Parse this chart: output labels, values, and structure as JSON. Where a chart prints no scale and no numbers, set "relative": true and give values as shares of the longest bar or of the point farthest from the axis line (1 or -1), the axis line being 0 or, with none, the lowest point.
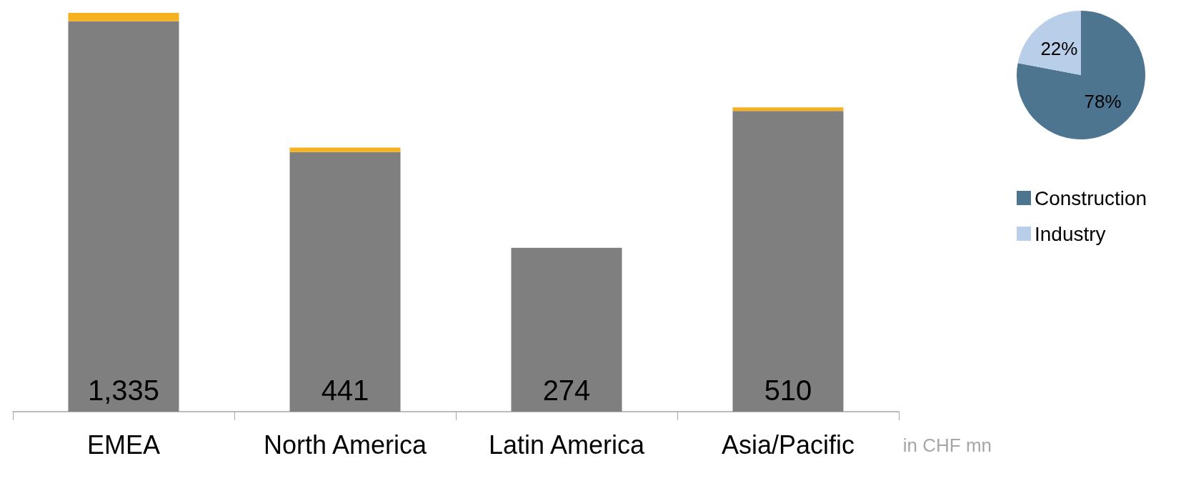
{
  "chart_data": [
    {
      "type": "bar",
      "stacked": true,
      "categories": [
        "EMEA",
        "North America",
        "Latin America",
        "Asia/Pacific"
      ],
      "relative": true,
      "series": [
        {
          "color": "#7f7f7f",
          "values": [
            0.979,
            0.651,
            0.411,
            0.754
          ]
        },
        {
          "color": "#f5b120",
          "values": [
            0.021,
            0.011,
            0,
            0.009
          ]
        }
      ],
      "grid": false,
      "legend": false,
      "annotations": [
        {
          "text": "1,335",
          "x": "EMEA",
          "y": 0
        },
        {
          "text": "441",
          "x": "North America",
          "y": 0
        },
        {
          "text": "274",
          "x": "Latin America",
          "y": 0
        },
        {
          "text": "510",
          "x": "Asia/Pacific",
          "y": 0
        },
        "in CHF mn"
      ]
    },
    {
      "type": "pie",
      "categories": [
        "Construction",
        "Industry"
      ],
      "values": [
        78,
        22
      ],
      "colors": [
        "#4e7590",
        "#b9cfe9"
      ],
      "value_labels": [
        "78%",
        "22%"
      ],
      "legend": "bottom"
    }
  ]
}
